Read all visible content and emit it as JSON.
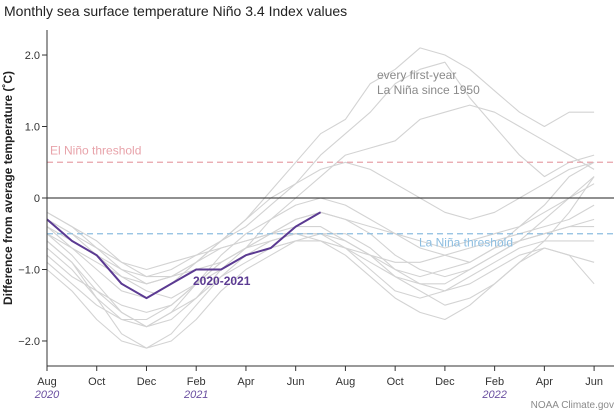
{
  "chart_data": {
    "type": "line",
    "title": "Monthly sea surface temperature Niño 3.4 Index values",
    "ylabel": "Difference from average temperature (˚C)",
    "xlabel": "",
    "ylim": [
      -2.35,
      2.35
    ],
    "grid": false,
    "x_tick_labels": [
      "Aug",
      "Oct",
      "Dec",
      "Feb",
      "Apr",
      "Jun",
      "Aug",
      "Oct",
      "Dec",
      "Feb",
      "Apr",
      "Jun"
    ],
    "x_year_labels": [
      {
        "text": "2020",
        "month_index": 0
      },
      {
        "text": "2021",
        "month_index": 6
      },
      {
        "text": "2022",
        "month_index": 18
      }
    ],
    "y_ticks": [
      {
        "value": 2.0,
        "label": "2.0"
      },
      {
        "value": 1.0,
        "label": "1.0"
      },
      {
        "value": 0,
        "label": "0"
      },
      {
        "value": -1.0,
        "label": "−1.0"
      },
      {
        "value": -2.0,
        "label": "−2.0"
      }
    ],
    "month_index_range": [
      0,
      22.8
    ],
    "thresholds": [
      {
        "value": 0.5,
        "label": "El Niño threshold",
        "color": "#e8a3aa"
      },
      {
        "value": -0.5,
        "label": "La Niña threshold",
        "color": "#8cbde0"
      }
    ],
    "zero_line_color": "#222222",
    "annotation": "every first-year La Niña since 1950",
    "credit": "NOAA Climate.gov",
    "highlight_series": {
      "name": "2020-2021",
      "color": "#5b3a92",
      "x": [
        0,
        1,
        2,
        3,
        4,
        5,
        6,
        7,
        8,
        9,
        10,
        11
      ],
      "values": [
        -0.3,
        -0.6,
        -0.8,
        -1.2,
        -1.4,
        -1.2,
        -1.0,
        -1.0,
        -0.8,
        -0.7,
        -0.4,
        -0.2
      ]
    },
    "background_series_color": "#d3d3d3",
    "background_series": [
      {
        "values": [
          -0.2,
          -0.4,
          -0.6,
          -0.9,
          -1.1,
          -1.1,
          -0.9,
          -0.6,
          -0.3,
          0.1,
          0.5,
          0.9,
          1.1,
          1.6,
          1.8,
          2.1,
          2.0,
          1.8,
          1.5,
          1.2,
          1.0,
          1.2,
          1.2
        ]
      },
      {
        "values": [
          -0.3,
          -0.5,
          -0.7,
          -0.9,
          -1.0,
          -0.9,
          -0.8,
          -0.6,
          -0.4,
          -0.1,
          0.2,
          0.6,
          0.9,
          1.2,
          1.6,
          1.8,
          1.9,
          1.4,
          1.0,
          0.6,
          0.3,
          0.5,
          0.6
        ]
      },
      {
        "values": [
          -0.5,
          -0.8,
          -1.2,
          -1.6,
          -1.8,
          -1.7,
          -1.4,
          -1.0,
          -0.7,
          -0.3,
          0.0,
          0.3,
          0.6,
          0.7,
          0.8,
          1.1,
          1.2,
          1.3,
          1.2,
          1.0,
          0.8,
          0.6,
          0.4
        ]
      },
      {
        "values": [
          -0.4,
          -0.7,
          -1.0,
          -1.3,
          -1.4,
          -1.2,
          -0.9,
          -0.6,
          -0.3,
          0.0,
          0.2,
          0.4,
          0.5,
          0.4,
          0.2,
          0.0,
          -0.2,
          -0.3,
          -0.2,
          0.0,
          0.2,
          0.4,
          0.5
        ]
      },
      {
        "values": [
          -0.6,
          -0.9,
          -1.3,
          -1.6,
          -1.8,
          -1.6,
          -1.2,
          -0.8,
          -0.5,
          -0.3,
          -0.1,
          0.0,
          -0.1,
          -0.3,
          -0.5,
          -0.7,
          -0.8,
          -0.9,
          -0.7,
          -0.4,
          -0.1,
          0.3,
          0.5
        ]
      },
      {
        "values": [
          -0.2,
          -0.4,
          -0.7,
          -1.0,
          -1.2,
          -1.1,
          -0.9,
          -0.7,
          -0.6,
          -0.5,
          -0.4,
          -0.4,
          -0.6,
          -0.8,
          -1.1,
          -1.3,
          -1.5,
          -1.4,
          -1.2,
          -0.9,
          -0.6,
          -0.2,
          0.3
        ]
      },
      {
        "values": [
          -0.4,
          -0.6,
          -0.8,
          -1.1,
          -1.3,
          -1.4,
          -1.2,
          -1.0,
          -0.8,
          -0.7,
          -0.6,
          -0.6,
          -0.7,
          -0.9,
          -1.1,
          -1.2,
          -1.2,
          -1.0,
          -0.8,
          -0.6,
          -0.3,
          0.0,
          0.3
        ]
      },
      {
        "values": [
          -0.8,
          -1.1,
          -1.3,
          -1.5,
          -1.6,
          -1.5,
          -1.2,
          -0.9,
          -0.7,
          -0.6,
          -0.5,
          -0.5,
          -0.6,
          -0.8,
          -1.0,
          -1.1,
          -1.0,
          -0.9,
          -0.7,
          -0.6,
          -0.5,
          -0.4,
          -0.3
        ]
      },
      {
        "values": [
          -0.7,
          -1.0,
          -1.4,
          -1.7,
          -1.8,
          -1.6,
          -1.4,
          -1.1,
          -0.9,
          -0.7,
          -0.6,
          -0.6,
          -0.8,
          -1.1,
          -1.4,
          -1.6,
          -1.7,
          -1.5,
          -1.2,
          -0.9,
          -0.7,
          -0.8,
          -0.9
        ]
      },
      {
        "values": [
          -1.0,
          -1.3,
          -1.7,
          -2.0,
          -2.1,
          -2.0,
          -1.7,
          -1.3,
          -1.0,
          -0.8,
          -0.6,
          -0.5,
          -0.5,
          -0.7,
          -1.0,
          -1.2,
          -1.3,
          -1.2,
          -1.0,
          -0.8,
          -0.7,
          -0.8,
          -1.2
        ]
      },
      {
        "values": [
          -0.6,
          -0.9,
          -1.4,
          -1.9,
          -2.1,
          -1.9,
          -1.5,
          -1.1,
          -0.8,
          -0.6,
          -0.5,
          -0.5,
          -0.7,
          -1.0,
          -1.3,
          -1.4,
          -1.3,
          -1.1,
          -0.9,
          -0.7,
          -0.6,
          -0.6,
          -0.6
        ]
      },
      {
        "values": [
          -0.3,
          -0.5,
          -0.8,
          -1.0,
          -1.1,
          -1.0,
          -0.8,
          -0.7,
          -0.6,
          -0.5,
          -0.5,
          -0.6,
          -0.7,
          -0.8,
          -0.9,
          -0.9,
          -0.8,
          -0.7,
          -0.6,
          -0.5,
          -0.4,
          -0.3,
          -0.1
        ]
      },
      {
        "values": [
          -0.9,
          -1.2,
          -1.5,
          -1.7,
          -1.7,
          -1.5,
          -1.2,
          -0.9,
          -0.7,
          -0.5,
          -0.3,
          -0.2,
          -0.3,
          -0.5,
          -0.8,
          -1.0,
          -1.1,
          -1.0,
          -0.8,
          -0.6,
          -0.5,
          -0.4,
          -0.4
        ]
      },
      {
        "values": [
          -0.5,
          -0.7,
          -0.9,
          -1.1,
          -1.2,
          -1.1,
          -1.0,
          -0.9,
          -0.7,
          -0.5,
          -0.3,
          -0.2,
          -0.3,
          -0.4,
          -0.5,
          -0.6,
          -0.7,
          -0.6,
          -0.5,
          -0.4,
          -0.2,
          0.0,
          0.2
        ]
      }
    ]
  }
}
